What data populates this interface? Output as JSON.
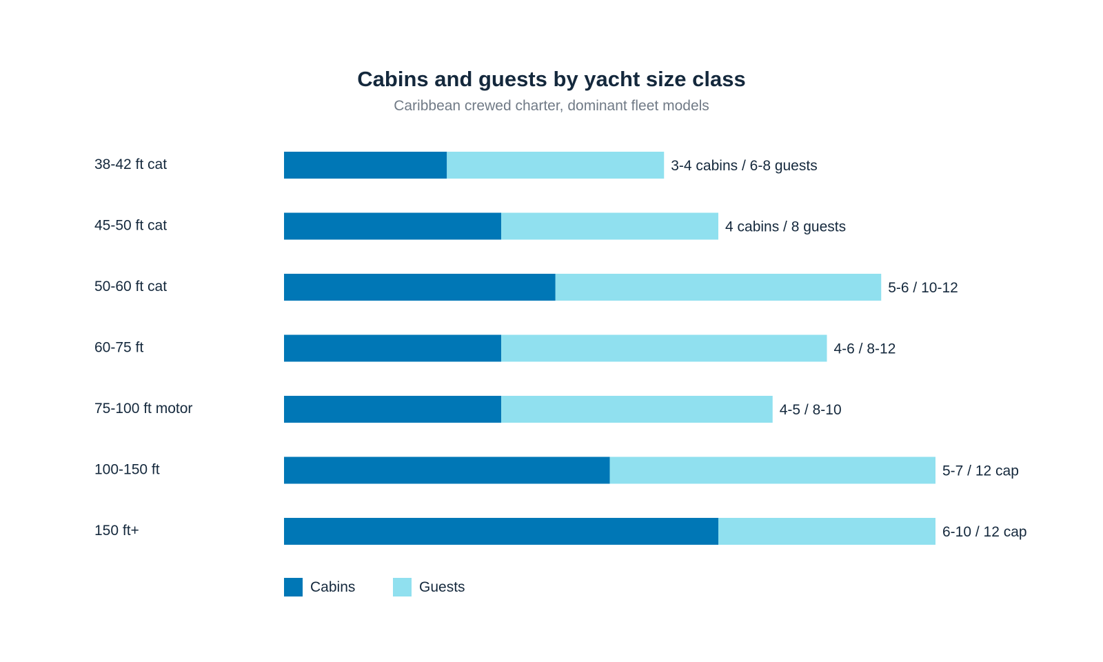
{
  "chart_data": {
    "type": "bar",
    "orientation": "horizontal",
    "stacked": true,
    "title": "Cabins and guests by yacht size class",
    "subtitle": "Caribbean crewed charter, dominant fleet models",
    "categories": [
      "38-42 ft cat",
      "45-50 ft cat",
      "50-60 ft cat",
      "60-75 ft",
      "75-100 ft motor",
      "100-150 ft",
      "150 ft+"
    ],
    "series": [
      {
        "name": "Cabins",
        "color": "#0077b6",
        "values": [
          3,
          4,
          5,
          4,
          4,
          6,
          8
        ]
      },
      {
        "name": "Guests",
        "color": "#90e0ef",
        "values": [
          4,
          4,
          6,
          6,
          5,
          6,
          4
        ]
      }
    ],
    "data_labels": [
      "3-4 cabins / 6-8 guests",
      "4 cabins / 8 guests",
      "5-6 / 10-12",
      "4-6 / 8-12",
      "4-5 / 8-10",
      "5-7 / 12 cap",
      "6-10 / 12 cap"
    ],
    "xlim": [
      0,
      12
    ],
    "grid": false,
    "legend_position": "bottom-left"
  }
}
